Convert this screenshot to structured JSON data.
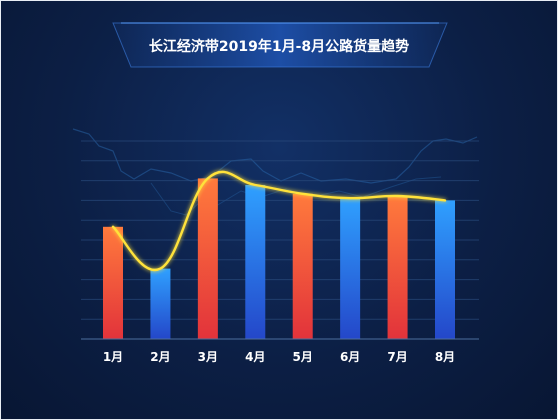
{
  "chart_data": {
    "type": "bar",
    "title": "长江经济带2019年1月-8月公路货量趋势",
    "categories": [
      "1月",
      "2月",
      "3月",
      "4月",
      "5月",
      "6月",
      "7月",
      "8月"
    ],
    "values": [
      51,
      32,
      73,
      70,
      66,
      64,
      65,
      63
    ],
    "bar_colors": [
      "red",
      "blue",
      "red",
      "blue",
      "red",
      "blue",
      "red",
      "blue"
    ],
    "trend_line": true,
    "ylim": [
      0,
      90
    ],
    "grid": true,
    "colors": {
      "red_top": "#ff7a3c",
      "red_bottom": "#e2333b",
      "blue_top": "#2fa0ff",
      "blue_bottom": "#2447c9",
      "trend": "#ffe23a",
      "background": "#0c1f45"
    }
  }
}
